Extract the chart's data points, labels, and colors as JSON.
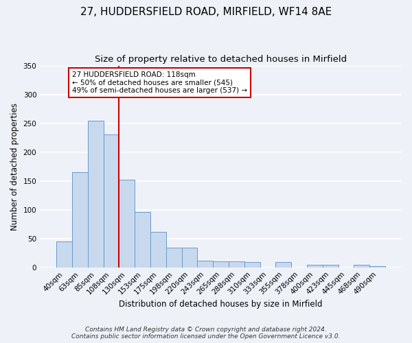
{
  "title": "27, HUDDERSFIELD ROAD, MIRFIELD, WF14 8AE",
  "subtitle": "Size of property relative to detached houses in Mirfield",
  "xlabel": "Distribution of detached houses by size in Mirfield",
  "ylabel": "Number of detached properties",
  "bar_color": "#c8d9ee",
  "bar_edge_color": "#6699cc",
  "categories": [
    "40sqm",
    "63sqm",
    "85sqm",
    "108sqm",
    "130sqm",
    "153sqm",
    "175sqm",
    "198sqm",
    "220sqm",
    "243sqm",
    "265sqm",
    "288sqm",
    "310sqm",
    "333sqm",
    "355sqm",
    "378sqm",
    "400sqm",
    "423sqm",
    "445sqm",
    "468sqm",
    "490sqm"
  ],
  "values": [
    45,
    165,
    254,
    230,
    152,
    96,
    61,
    34,
    34,
    11,
    10,
    10,
    9,
    0,
    9,
    0,
    5,
    5,
    0,
    5,
    2
  ],
  "vline_x": 3.5,
  "vline_color": "#cc0000",
  "ylim": [
    0,
    350
  ],
  "yticks": [
    0,
    50,
    100,
    150,
    200,
    250,
    300,
    350
  ],
  "annotation_title": "27 HUDDERSFIELD ROAD: 118sqm",
  "annotation_line1": "← 50% of detached houses are smaller (545)",
  "annotation_line2": "49% of semi-detached houses are larger (537) →",
  "footer1": "Contains HM Land Registry data © Crown copyright and database right 2024.",
  "footer2": "Contains public sector information licensed under the Open Government Licence v3.0.",
  "background_color": "#eef2f8",
  "grid_color": "#ffffff",
  "title_fontsize": 11,
  "subtitle_fontsize": 9.5,
  "axis_label_fontsize": 8.5,
  "tick_fontsize": 7.5,
  "footer_fontsize": 6.5
}
